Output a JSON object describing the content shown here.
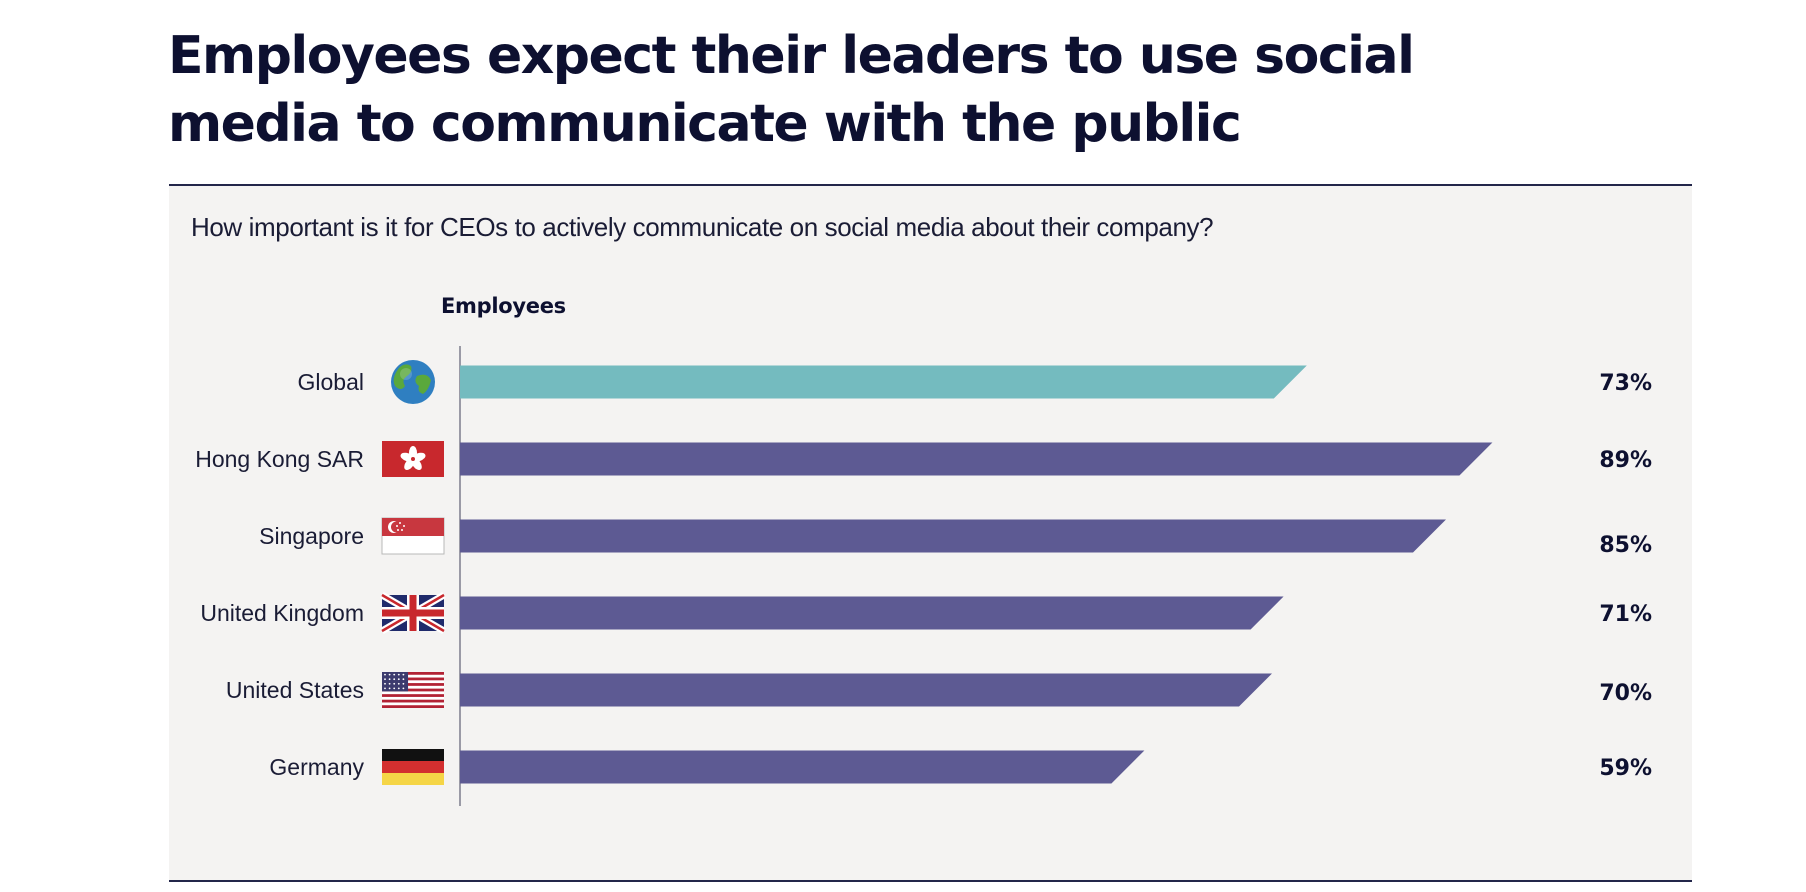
{
  "title": "Employees expect their leaders to use social media to communicate with the public",
  "subtitle": "How important is it for CEOs to actively communicate on social media about their company?",
  "chart_data": {
    "type": "bar",
    "orientation": "horizontal",
    "series_name": "Employees",
    "unit": "%",
    "categories": [
      "Global",
      "Hong Kong SAR",
      "Singapore",
      "United Kingdom",
      "United States",
      "Germany"
    ],
    "values": [
      73,
      89,
      85,
      71,
      70,
      59
    ],
    "value_labels": [
      "73%",
      "89%",
      "85%",
      "71%",
      "70%",
      "59%"
    ],
    "icons": [
      "globe-icon",
      "hong-kong-flag-icon",
      "singapore-flag-icon",
      "uk-flag-icon",
      "us-flag-icon",
      "germany-flag-icon"
    ],
    "bar_colors": [
      "#74bbbf",
      "#5d5a93",
      "#5d5a93",
      "#5d5a93",
      "#5d5a93",
      "#5d5a93"
    ],
    "xlim": [
      0,
      100
    ],
    "grid": false,
    "legend": "none"
  }
}
